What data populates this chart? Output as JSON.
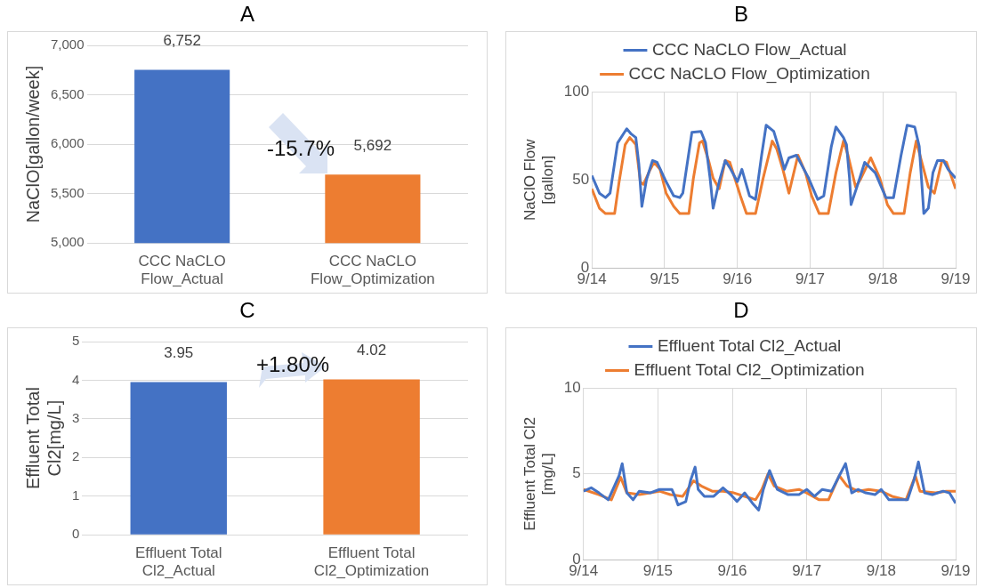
{
  "chart_data": [
    {
      "type": "bar",
      "title": "A",
      "ylabel": "NaClO[gallon/week]",
      "categories": [
        "CCC NaCLO Flow_Actual",
        "CCC NaCLO Flow_Optimization"
      ],
      "values": [
        6752,
        5692
      ],
      "colors": [
        "#4472c4",
        "#ed7d31"
      ],
      "value_labels": [
        "6,752",
        "5,692"
      ],
      "ylim": [
        5000,
        7000
      ],
      "yticks": [
        {
          "value": 5000,
          "label": "5,000"
        },
        {
          "value": 5500,
          "label": "5,500"
        },
        {
          "value": 6000,
          "label": "6,000"
        },
        {
          "value": 6500,
          "label": "6,500"
        },
        {
          "value": 7000,
          "label": "7,000"
        }
      ],
      "grid": "y",
      "legend": false,
      "annotations": [
        "-15.7%"
      ]
    },
    {
      "type": "line",
      "title": "B",
      "ylabel": "NaClO Flow [gallon]",
      "legend": "top",
      "grid": true,
      "marker": "none",
      "xlim": [
        "--09-14",
        "--09-19"
      ],
      "xticks": [
        {
          "value": "--09-14",
          "label": "9/14"
        },
        {
          "value": "--09-15",
          "label": "9/15"
        },
        {
          "value": "--09-16",
          "label": "9/16"
        },
        {
          "value": "--09-17",
          "label": "9/17"
        },
        {
          "value": "--09-18",
          "label": "9/18"
        },
        {
          "value": "--09-19",
          "label": "9/19"
        }
      ],
      "ylim": [
        0,
        100
      ],
      "yticks": [
        0,
        50,
        100
      ],
      "series": [
        {
          "name": "CCC NaCLO Flow_Actual",
          "color": "#4472c4",
          "x": [
            "--09-14T00:00",
            "--09-14T02:30",
            "--09-14T04:30",
            "--09-14T06:00",
            "--09-14T08:30",
            "--09-14T11:30",
            "--09-14T13:00",
            "--09-14T14:30",
            "--09-14T15:30",
            "--09-14T16:30",
            "--09-14T18:00",
            "--09-14T20:00",
            "--09-14T21:30",
            "--09-15T00:30",
            "--09-15T03:00",
            "--09-15T05:00",
            "--09-15T06:00",
            "--09-15T09:00",
            "--09-15T12:00",
            "--09-15T13:30",
            "--09-15T15:00",
            "--09-15T16:00",
            "--09-15T18:00",
            "--09-15T20:00",
            "--09-15T21:30",
            "--09-16T00:00",
            "--09-16T01:30",
            "--09-16T04:00",
            "--09-16T06:00",
            "--09-16T08:00",
            "--09-16T09:30",
            "--09-16T12:00",
            "--09-16T13:30",
            "--09-16T15:30",
            "--09-16T17:00",
            "--09-16T19:30",
            "--09-16T21:30",
            "--09-16T23:30",
            "--09-17T02:30",
            "--09-17T04:30",
            "--09-17T07:00",
            "--09-17T08:30",
            "--09-17T11:00",
            "--09-17T12:00",
            "--09-17T13:00",
            "--09-17T13:30",
            "--09-17T16:00",
            "--09-17T18:00",
            "--09-17T21:30",
            "--09-18T01:00",
            "--09-18T03:30",
            "--09-18T06:00",
            "--09-18T08:00",
            "--09-18T10:30",
            "--09-18T12:00",
            "--09-18T13:00",
            "--09-18T13:30",
            "--09-18T15:00",
            "--09-18T16:30",
            "--09-18T18:00",
            "--09-18T20:00",
            "--09-18T21:30",
            "--09-19T00:00"
          ],
          "values": [
            52.5,
            42.5,
            40,
            42.5,
            71,
            79,
            76,
            74,
            59,
            35,
            50,
            61,
            60,
            49,
            41,
            40,
            42.5,
            77,
            77.5,
            71,
            51,
            34,
            49,
            61,
            57,
            49,
            56,
            41,
            39,
            64,
            81,
            77.5,
            69,
            56,
            62.5,
            64,
            57.5,
            51,
            39,
            41,
            69,
            80,
            74,
            70,
            51,
            36,
            49,
            60,
            54,
            40,
            40,
            64,
            81,
            80,
            69,
            44,
            31,
            34,
            54,
            61,
            61,
            56,
            51
          ]
        },
        {
          "name": "CCC NaCLO Flow_Optimization",
          "color": "#ed7d31",
          "x": [
            "--09-14T00:00",
            "--09-14T02:30",
            "--09-14T04:30",
            "--09-14T07:30",
            "--09-14T09:00",
            "--09-14T11:00",
            "--09-14T12:30",
            "--09-14T14:30",
            "--09-14T16:00",
            "--09-14T17:00",
            "--09-14T19:00",
            "--09-14T20:30",
            "--09-14T22:30",
            "--09-15T00:30",
            "--09-15T03:00",
            "--09-15T05:00",
            "--09-15T08:00",
            "--09-15T09:30",
            "--09-15T11:30",
            "--09-15T12:30",
            "--09-15T14:30",
            "--09-15T16:00",
            "--09-15T18:00",
            "--09-15T20:00",
            "--09-15T21:30",
            "--09-16T01:00",
            "--09-16T03:00",
            "--09-16T06:00",
            "--09-16T08:30",
            "--09-16T11:30",
            "--09-16T13:00",
            "--09-16T15:00",
            "--09-16T17:00",
            "--09-16T20:00",
            "--09-16T22:30",
            "--09-17T00:30",
            "--09-17T03:00",
            "--09-17T06:00",
            "--09-17T08:30",
            "--09-17T11:00",
            "--09-17T12:30",
            "--09-17T15:00",
            "--09-17T16:30",
            "--09-17T20:00",
            "--09-17T23:00",
            "--09-18T01:30",
            "--09-18T03:30",
            "--09-18T07:00",
            "--09-18T09:00",
            "--09-18T11:00",
            "--09-18T13:00",
            "--09-18T15:00",
            "--09-18T17:00",
            "--09-18T19:30",
            "--09-18T21:00",
            "--09-19T00:00"
          ],
          "values": [
            45,
            34,
            31,
            31,
            49,
            70,
            74,
            70,
            49,
            47.5,
            55,
            60,
            56,
            42.5,
            35,
            31,
            31,
            51,
            71,
            72,
            61,
            51,
            45,
            61,
            60,
            41,
            31,
            31,
            51,
            72,
            67.5,
            56,
            42.5,
            64,
            54,
            41,
            31,
            31,
            54,
            72,
            64,
            46,
            50,
            62.5,
            51,
            36,
            31,
            31,
            54,
            72,
            59,
            46,
            42.5,
            61,
            60,
            45
          ]
        }
      ]
    },
    {
      "type": "bar",
      "title": "C",
      "ylabel": "Effluent Total Cl2[mg/L]",
      "categories": [
        "Effluent Total Cl2_Actual",
        "Effluent Total Cl2_Optimization"
      ],
      "values": [
        3.95,
        4.02
      ],
      "colors": [
        "#4472c4",
        "#ed7d31"
      ],
      "data_labels": true,
      "ylim": [
        0,
        5
      ],
      "yticks": [
        0,
        1,
        2,
        3,
        4,
        5
      ],
      "grid": "y",
      "legend": false,
      "annotations": [
        "+1.80%"
      ]
    },
    {
      "type": "line",
      "title": "D",
      "ylabel": "Effluent Total Cl2 [mg/L]",
      "legend": "top",
      "grid": true,
      "marker": "none",
      "xlim": [
        "--09-14",
        "--09-19"
      ],
      "xticks": [
        {
          "value": "--09-14",
          "label": "9/14"
        },
        {
          "value": "--09-15",
          "label": "9/15"
        },
        {
          "value": "--09-16",
          "label": "9/16"
        },
        {
          "value": "--09-17",
          "label": "9/17"
        },
        {
          "value": "--09-18",
          "label": "9/18"
        },
        {
          "value": "--09-19",
          "label": "9/19"
        }
      ],
      "ylim": [
        0,
        10
      ],
      "yticks": [
        0,
        5,
        10
      ],
      "series": [
        {
          "name": "Effluent Total Cl2_Actual",
          "color": "#4472c4",
          "x": [
            "--09-14T00:00",
            "--09-14T02:30",
            "--09-14T05:00",
            "--09-14T08:00",
            "--09-14T11:30",
            "--09-14T12:30",
            "--09-14T14:00",
            "--09-14T16:00",
            "--09-14T18:00",
            "--09-14T21:30",
            "--09-15T00:30",
            "--09-15T04:30",
            "--09-15T05:30",
            "--09-15T06:30",
            "--09-15T09:00",
            "--09-15T10:30",
            "--09-15T12:00",
            "--09-15T13:00",
            "--09-15T15:00",
            "--09-15T18:00",
            "--09-15T21:00",
            "--09-15T23:30",
            "--09-16T01:30",
            "--09-16T04:00",
            "--09-16T06:30",
            "--09-16T08:30",
            "--09-16T10:00",
            "--09-16T12:00",
            "--09-16T14:30",
            "--09-16T18:00",
            "--09-16T21:30",
            "--09-17T00:00",
            "--09-17T02:30",
            "--09-17T05:00",
            "--09-17T08:00",
            "--09-17T10:30",
            "--09-17T12:30",
            "--09-17T14:30",
            "--09-17T16:30",
            "--09-17T19:00",
            "--09-17T22:00",
            "--09-18T00:00",
            "--09-18T02:30",
            "--09-18T05:30",
            "--09-18T08:30",
            "--09-18T10:30",
            "--09-18T12:00",
            "--09-18T14:00",
            "--09-18T16:30",
            "--09-18T20:00",
            "--09-18T22:00",
            "--09-19T00:00"
          ],
          "values": [
            4.0,
            4.2,
            3.9,
            3.5,
            4.9,
            5.6,
            3.9,
            3.5,
            4.0,
            3.9,
            4.1,
            4.1,
            3.7,
            3.2,
            3.4,
            4.6,
            5.4,
            4.1,
            3.7,
            3.7,
            4.2,
            3.8,
            3.4,
            3.9,
            3.3,
            2.9,
            4.1,
            5.2,
            4.1,
            3.8,
            3.8,
            4.1,
            3.7,
            4.1,
            4.0,
            4.9,
            5.6,
            3.9,
            4.1,
            3.9,
            3.8,
            4.1,
            3.5,
            3.5,
            3.5,
            4.6,
            5.7,
            3.9,
            3.8,
            4.0,
            3.9,
            3.3
          ]
        },
        {
          "name": "Effluent Total Cl2_Optimization",
          "color": "#ed7d31",
          "x": [
            "--09-14T00:00",
            "--09-14T05:00",
            "--09-14T09:00",
            "--09-14T12:00",
            "--09-14T14:00",
            "--09-14T18:00",
            "--09-14T21:30",
            "--09-15T00:30",
            "--09-15T04:00",
            "--09-15T08:00",
            "--09-15T11:30",
            "--09-15T14:00",
            "--09-15T17:30",
            "--09-15T21:00",
            "--09-16T00:30",
            "--09-16T04:00",
            "--09-16T07:30",
            "--09-16T09:30",
            "--09-16T11:30",
            "--09-16T13:30",
            "--09-16T17:30",
            "--09-16T21:30",
            "--09-17T00:00",
            "--09-17T04:00",
            "--09-17T07:00",
            "--09-17T10:30",
            "--09-17T13:00",
            "--09-17T16:30",
            "--09-17T20:00",
            "--09-18T00:00",
            "--09-18T03:30",
            "--09-18T08:00",
            "--09-18T11:00",
            "--09-18T12:30",
            "--09-18T17:30",
            "--09-18T21:00",
            "--09-19T00:00"
          ],
          "values": [
            4.1,
            3.8,
            3.5,
            4.8,
            3.9,
            3.8,
            3.9,
            4.0,
            3.8,
            3.7,
            4.6,
            4.3,
            4.0,
            4.0,
            3.9,
            3.7,
            3.5,
            4.1,
            5.0,
            4.3,
            4.0,
            4.1,
            3.9,
            3.5,
            3.5,
            4.9,
            4.3,
            4.0,
            4.1,
            4.0,
            3.7,
            3.5,
            4.9,
            4.0,
            3.9,
            4.0,
            4.0
          ]
        }
      ]
    }
  ]
}
